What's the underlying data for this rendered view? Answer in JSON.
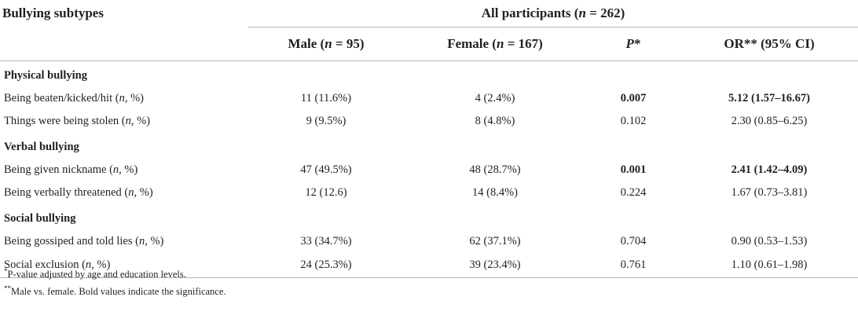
{
  "header": {
    "subtypes_label": "Bullying subtypes",
    "group_pre": "All participants (",
    "group_n": "n",
    "group_post": " = 262)",
    "columns": [
      {
        "pre": "Male (",
        "it": "n",
        "post": " = 95)"
      },
      {
        "pre": "Female (",
        "it": "n",
        "post": " = 167)"
      },
      {
        "pre": "",
        "it": "P",
        "post": "*"
      },
      {
        "pre": "OR** (95% CI)",
        "it": "",
        "post": ""
      }
    ]
  },
  "sections": [
    {
      "title": "Physical bullying",
      "rows": [
        {
          "label_pre": "Being beaten/kicked/hit (",
          "label_it": "n",
          "label_post": ", %)",
          "male": "11 (11.6%)",
          "female": "4 (2.4%)",
          "p": "0.007",
          "or": "5.12 (1.57–16.67)"
        },
        {
          "label_pre": "Things were being stolen (",
          "label_it": "n",
          "label_post": ", %)",
          "male": "9 (9.5%)",
          "female": "8 (4.8%)",
          "p": "0.102",
          "or": "2.30 (0.85–6.25)"
        }
      ]
    },
    {
      "title": "Verbal bullying",
      "rows": [
        {
          "label_pre": "Being given nickname (",
          "label_it": "n",
          "label_post": ", %)",
          "male": "47 (49.5%)",
          "female": "48 (28.7%)",
          "p": "0.001",
          "or": "2.41 (1.42–4.09)"
        },
        {
          "label_pre": "Being verbally threatened (",
          "label_it": "n",
          "label_post": ", %)",
          "male": "12 (12.6)",
          "female": "14 (8.4%)",
          "p": "0.224",
          "or": "1.67 (0.73–3.81)"
        }
      ]
    },
    {
      "title": "Social bullying",
      "rows": [
        {
          "label_pre": "Being gossiped and told lies (",
          "label_it": "n",
          "label_post": ", %)",
          "male": "33 (34.7%)",
          "female": "62 (37.1%)",
          "p": "0.704",
          "or": "0.90 (0.53–1.53)"
        },
        {
          "label_pre": "Social exclusion (",
          "label_it": "n",
          "label_post": ", %)",
          "male": "24 (25.3%)",
          "female": "39 (23.4%)",
          "p": "0.761",
          "or": "1.10 (0.61–1.98)"
        }
      ]
    }
  ],
  "footnotes": {
    "f1_mark": "*",
    "f1_text": "P-value adjusted by age and education levels.",
    "f2_mark": "**",
    "f2_text": "Male vs. female. Bold values indicate the significance."
  }
}
